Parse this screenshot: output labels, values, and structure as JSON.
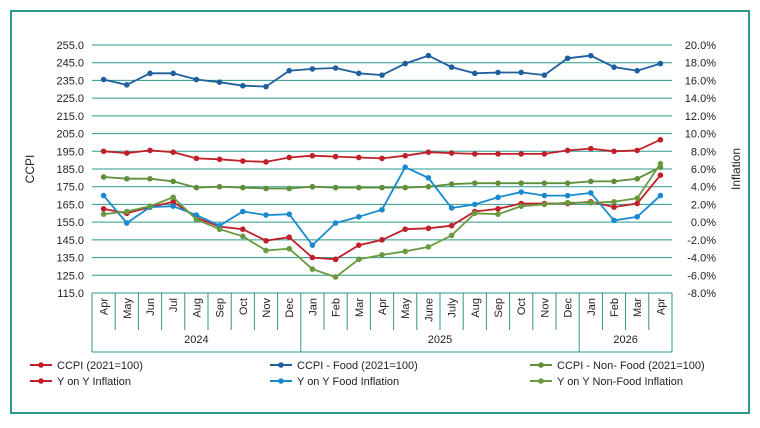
{
  "chart_data": {
    "type": "line",
    "categories": [
      "Apr",
      "May",
      "Jun",
      "Jul",
      "Aug",
      "Sep",
      "Oct",
      "Nov",
      "Dec",
      "Jan",
      "Feb",
      "Mar",
      "Apr",
      "May",
      "June",
      "July",
      "Aug",
      "Sep",
      "Oct",
      "Nov",
      "Dec",
      "Jan",
      "Feb",
      "Mar",
      "Apr"
    ],
    "year_groups": [
      {
        "label": "2024",
        "from": 0,
        "to": 8
      },
      {
        "label": "2025",
        "from": 9,
        "to": 20
      },
      {
        "label": "2026",
        "from": 21,
        "to": 24
      }
    ],
    "ylabel": "CCPI",
    "y2label": "Inflation",
    "ylim": [
      115,
      255
    ],
    "y2lim": [
      -8,
      20
    ],
    "y_ticks": [
      "255.0",
      "245.0",
      "235.0",
      "225.0",
      "215.0",
      "205.0",
      "195.0",
      "185.0",
      "175.0",
      "165.0",
      "155.0",
      "145.0",
      "135.0",
      "125.0",
      "115.0"
    ],
    "y2_ticks": [
      "20.0%",
      "18.0%",
      "16.0%",
      "14.0%",
      "12.0%",
      "10.0%",
      "8.0%",
      "6.0%",
      "4.0%",
      "2.0%",
      "0.0%",
      "-2.0%",
      "-4.0%",
      "-6.0%",
      "-8.0%"
    ],
    "grid": true,
    "legend_position": "bottom",
    "series": [
      {
        "name": "CCPI (2021=100)",
        "axis": "left",
        "color": "#c0202a",
        "values": [
          195.0,
          194.0,
          195.5,
          194.5,
          191.0,
          190.5,
          189.5,
          189.0,
          191.5,
          192.5,
          192.0,
          191.5,
          191.0,
          192.5,
          194.5,
          194.0,
          193.5,
          193.5,
          193.5,
          193.5,
          195.5,
          196.5,
          195.0,
          195.5,
          201.5
        ]
      },
      {
        "name": "CCPI - Food (2021=100)",
        "axis": "left",
        "color": "#1f5f9e",
        "values": [
          235.5,
          232.5,
          239.0,
          239.0,
          235.5,
          234.0,
          232.0,
          231.5,
          240.5,
          241.5,
          242.0,
          239.0,
          238.0,
          244.5,
          249.0,
          242.5,
          239.0,
          239.5,
          239.5,
          238.0,
          247.5,
          249.0,
          242.5,
          240.5,
          244.5
        ]
      },
      {
        "name": "CCPI - Non- Food (2021=100)",
        "axis": "left",
        "color": "#5f8f3a",
        "values": [
          180.5,
          179.5,
          179.5,
          178.0,
          174.5,
          175.0,
          174.5,
          174.0,
          174.0,
          175.0,
          174.5,
          174.5,
          174.5,
          174.5,
          175.0,
          176.5,
          177.0,
          177.0,
          177.0,
          177.0,
          177.0,
          178.0,
          178.0,
          179.5,
          186.0
        ]
      },
      {
        "name": "Y on Y  Inflation",
        "axis": "right",
        "color": "#c0202a",
        "values": [
          1.5,
          1.0,
          1.7,
          2.3,
          0.5,
          -0.5,
          -0.8,
          -2.1,
          -1.7,
          -4.0,
          -4.2,
          -2.6,
          -2.0,
          -0.8,
          -0.7,
          -0.4,
          1.2,
          1.5,
          2.1,
          2.1,
          2.1,
          2.3,
          1.7,
          2.1,
          5.3
        ]
      },
      {
        "name": "Y on Y  Food Inflation",
        "axis": "right",
        "color": "#1a8ad0",
        "values": [
          3.0,
          -0.1,
          1.7,
          1.8,
          0.8,
          -0.4,
          1.2,
          0.8,
          0.9,
          -2.6,
          -0.1,
          0.6,
          1.4,
          6.2,
          5.0,
          1.6,
          2.0,
          2.8,
          3.4,
          3.0,
          3.0,
          3.3,
          0.2,
          0.6,
          3.0
        ]
      },
      {
        "name": "Y on Y  Non-Food Inflation",
        "axis": "right",
        "color": "#6a9a40",
        "values": [
          0.9,
          1.2,
          1.8,
          2.8,
          0.3,
          -0.8,
          -1.6,
          -3.2,
          -3.0,
          -5.3,
          -6.2,
          -4.2,
          -3.7,
          -3.3,
          -2.8,
          -1.5,
          1.0,
          0.9,
          1.8,
          2.0,
          2.2,
          2.2,
          2.3,
          2.7,
          6.6
        ]
      }
    ]
  }
}
